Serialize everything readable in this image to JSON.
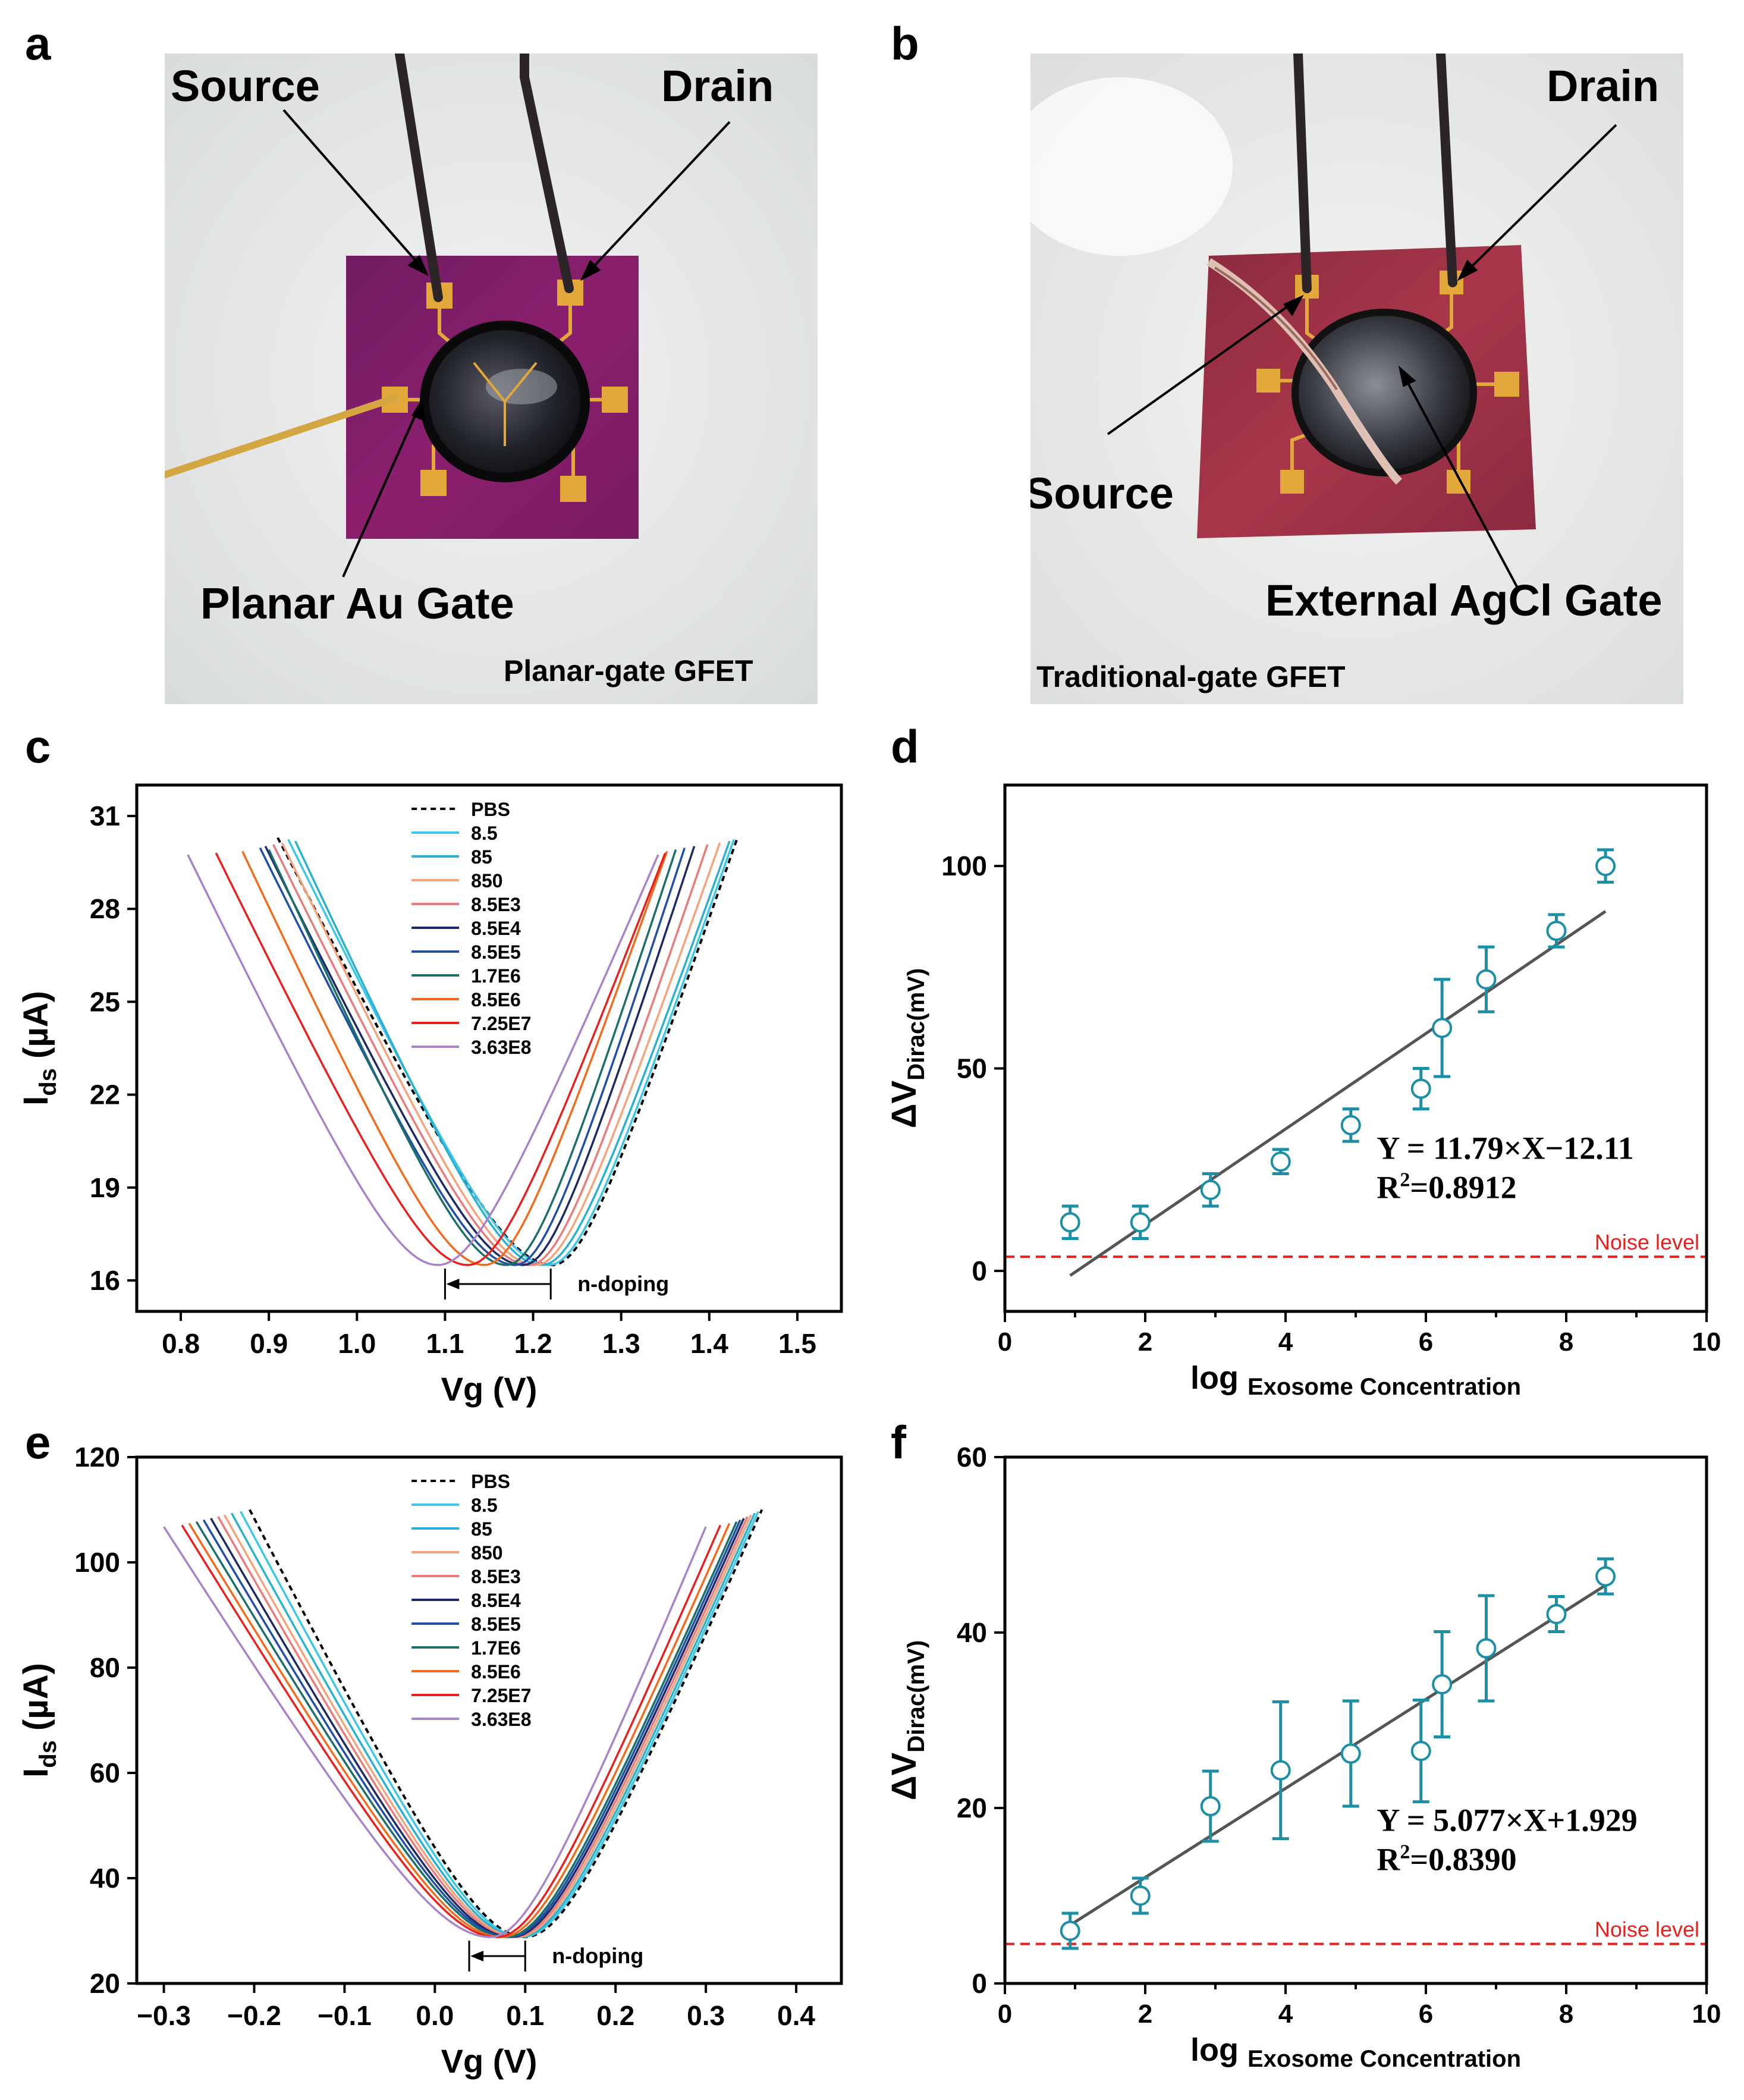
{
  "panels": {
    "a": {
      "letter": "a",
      "labels": {
        "source": "Source",
        "drain": "Drain",
        "gate": "Planar Au Gate",
        "caption": "Planar-gate GFET"
      },
      "colors": {
        "chip": "#8b1f6e",
        "background": "#eef0ef",
        "pad": "#e3a83a"
      }
    },
    "b": {
      "letter": "b",
      "labels": {
        "source": "Source",
        "drain": "Drain",
        "gate": "External AgCl Gate",
        "caption": "Traditional-gate GFET"
      },
      "colors": {
        "chip": "#a8364a",
        "background": "#f0f1f0",
        "pad": "#e3a83a"
      }
    }
  },
  "chart_data": [
    {
      "id": "c",
      "letter": "c",
      "type": "line",
      "xlabel": "Vg (V)",
      "ylabel_main": "I",
      "ylabel_sub": "ds",
      "ylabel_unit": " (µA)",
      "xlim": [
        0.75,
        1.55
      ],
      "ylim": [
        15,
        32
      ],
      "xticks": [
        "0.8",
        "0.9",
        "1.0",
        "1.1",
        "1.2",
        "1.3",
        "1.4",
        "1.5"
      ],
      "yticks": [
        "16",
        "19",
        "22",
        "25",
        "28",
        "31"
      ],
      "annotation": "n-doping",
      "arrow_from": 1.22,
      "arrow_to": 1.1,
      "series": [
        {
          "name": "PBS",
          "color": "#000000",
          "dashed": true,
          "dirac": 1.222,
          "xmin": 0.91,
          "xmax": 1.432
        },
        {
          "name": "8.5",
          "color": "#3cc6e8",
          "dashed": false,
          "dirac": 1.218,
          "xmin": 0.922,
          "xmax": 1.428
        },
        {
          "name": "85",
          "color": "#2ab1d1",
          "dashed": false,
          "dirac": 1.21,
          "xmin": 0.93,
          "xmax": 1.423
        },
        {
          "name": "850",
          "color": "#f5a37a",
          "dashed": false,
          "dirac": 1.203,
          "xmin": 0.915,
          "xmax": 1.412
        },
        {
          "name": "8.5E3",
          "color": "#e97b7b",
          "dashed": false,
          "dirac": 1.196,
          "xmin": 0.905,
          "xmax": 1.398
        },
        {
          "name": "8.5E4",
          "color": "#1c2a66",
          "dashed": false,
          "dirac": 1.189,
          "xmin": 0.896,
          "xmax": 1.383
        },
        {
          "name": "8.5E5",
          "color": "#1f4fa8",
          "dashed": false,
          "dirac": 1.18,
          "xmin": 0.89,
          "xmax": 1.372
        },
        {
          "name": "1.7E6",
          "color": "#1b6f6a",
          "dashed": false,
          "dirac": 1.17,
          "xmin": 0.9,
          "xmax": 1.362
        },
        {
          "name": "8.5E6",
          "color": "#f26b1d",
          "dashed": false,
          "dirac": 1.145,
          "xmin": 0.87,
          "xmax": 1.352
        },
        {
          "name": "7.25E7",
          "color": "#e8211f",
          "dashed": false,
          "dirac": 1.126,
          "xmin": 0.84,
          "xmax": 1.35
        },
        {
          "name": "3.63E8",
          "color": "#a783c9",
          "dashed": false,
          "dirac": 1.092,
          "xmin": 0.808,
          "xmax": 1.342
        }
      ]
    },
    {
      "id": "d",
      "letter": "d",
      "type": "scatter",
      "xlabel_main": "log",
      "xlabel_sub": "Exosome Concentration",
      "ylabel_main": "ΔV",
      "ylabel_sub": "Dirac(mV)",
      "xlim": [
        0,
        10
      ],
      "ylim": [
        -10,
        120
      ],
      "xticks": [
        "0",
        "2",
        "4",
        "6",
        "8",
        "10"
      ],
      "yticks": [
        "0",
        "50",
        "100"
      ],
      "equation": "Y = 11.79×X−12.11",
      "r2_label": "R",
      "r2_exp": "2",
      "r2_value": "=0.8912",
      "noise_label": "Noise level",
      "noise_y": 3.5,
      "fit": {
        "slope": 11.79,
        "intercept": -12.11,
        "x0": 0.93,
        "x1": 8.56
      },
      "points": [
        {
          "x": 0.93,
          "y": 12,
          "err": 4
        },
        {
          "x": 1.93,
          "y": 12,
          "err": 4
        },
        {
          "x": 2.93,
          "y": 20,
          "err": 4
        },
        {
          "x": 3.93,
          "y": 27,
          "err": 3
        },
        {
          "x": 4.93,
          "y": 36,
          "err": 4
        },
        {
          "x": 5.93,
          "y": 45,
          "err": 5
        },
        {
          "x": 6.23,
          "y": 60,
          "err": 12
        },
        {
          "x": 6.86,
          "y": 72,
          "err": 8
        },
        {
          "x": 7.86,
          "y": 84,
          "err": 4
        },
        {
          "x": 8.56,
          "y": 100,
          "err": 4
        }
      ]
    },
    {
      "id": "e",
      "letter": "e",
      "type": "line",
      "xlabel": "Vg (V)",
      "ylabel_main": "I",
      "ylabel_sub": "ds",
      "ylabel_unit": " (µA)",
      "xlim": [
        -0.33,
        0.45
      ],
      "ylim": [
        20,
        120
      ],
      "xticks": [
        "−0.3",
        "−0.2",
        "−0.1",
        "0.0",
        "0.1",
        "0.2",
        "0.3",
        "0.4"
      ],
      "yticks": [
        "20",
        "40",
        "60",
        "80",
        "100",
        "120"
      ],
      "annotation": "n-doping",
      "arrow_from": 0.1,
      "arrow_to": 0.038,
      "series": [
        {
          "name": "PBS",
          "color": "#000000",
          "dashed": true,
          "dirac": 0.1,
          "xmin": -0.205,
          "xmax": 0.362
        },
        {
          "name": "8.5",
          "color": "#3cc6e8",
          "dashed": false,
          "dirac": 0.097,
          "xmin": -0.215,
          "xmax": 0.358
        },
        {
          "name": "85",
          "color": "#2ab1d1",
          "dashed": false,
          "dirac": 0.094,
          "xmin": -0.225,
          "xmax": 0.354
        },
        {
          "name": "850",
          "color": "#f5a37a",
          "dashed": false,
          "dirac": 0.091,
          "xmin": -0.233,
          "xmax": 0.35
        },
        {
          "name": "8.5E3",
          "color": "#e97b7b",
          "dashed": false,
          "dirac": 0.088,
          "xmin": -0.24,
          "xmax": 0.346
        },
        {
          "name": "8.5E4",
          "color": "#1c2a66",
          "dashed": false,
          "dirac": 0.085,
          "xmin": -0.248,
          "xmax": 0.342
        },
        {
          "name": "8.5E5",
          "color": "#1f4fa8",
          "dashed": false,
          "dirac": 0.082,
          "xmin": -0.256,
          "xmax": 0.338
        },
        {
          "name": "1.7E6",
          "color": "#1b6f6a",
          "dashed": false,
          "dirac": 0.079,
          "xmin": -0.264,
          "xmax": 0.334
        },
        {
          "name": "8.5E6",
          "color": "#f26b1d",
          "dashed": false,
          "dirac": 0.074,
          "xmin": -0.272,
          "xmax": 0.326
        },
        {
          "name": "7.25E7",
          "color": "#e8211f",
          "dashed": false,
          "dirac": 0.069,
          "xmin": -0.28,
          "xmax": 0.316
        },
        {
          "name": "3.63E8",
          "color": "#a783c9",
          "dashed": false,
          "dirac": 0.062,
          "xmin": -0.3,
          "xmax": 0.3
        }
      ]
    },
    {
      "id": "f",
      "letter": "f",
      "type": "scatter",
      "xlabel_main": "log",
      "xlabel_sub": "Exosome Concentration",
      "ylabel_main": "ΔV",
      "ylabel_sub": "Dirac(mV)",
      "xlim": [
        0,
        10
      ],
      "ylim": [
        0,
        60
      ],
      "xticks": [
        "0",
        "2",
        "4",
        "6",
        "8",
        "10"
      ],
      "yticks": [
        "0",
        "20",
        "40",
        "60"
      ],
      "equation": "Y = 5.077×X+1.929",
      "r2_label": "R",
      "r2_exp": "2",
      "r2_value": "=0.8390",
      "noise_label": "Noise level",
      "noise_y": 4.5,
      "fit": {
        "slope": 5.077,
        "intercept": 1.929,
        "x0": 0.93,
        "x1": 8.56
      },
      "points": [
        {
          "x": 0.93,
          "y": 6.0,
          "err": 2
        },
        {
          "x": 1.93,
          "y": 10.0,
          "err": 2
        },
        {
          "x": 2.93,
          "y": 20.2,
          "err": 4
        },
        {
          "x": 3.93,
          "y": 24.3,
          "err": 7.8
        },
        {
          "x": 4.93,
          "y": 26.2,
          "err": 6
        },
        {
          "x": 5.93,
          "y": 26.5,
          "err": 5.8
        },
        {
          "x": 6.23,
          "y": 34.1,
          "err": 6
        },
        {
          "x": 6.86,
          "y": 38.2,
          "err": 6
        },
        {
          "x": 7.86,
          "y": 42.1,
          "err": 2
        },
        {
          "x": 8.56,
          "y": 46.4,
          "err": 2
        }
      ]
    }
  ]
}
